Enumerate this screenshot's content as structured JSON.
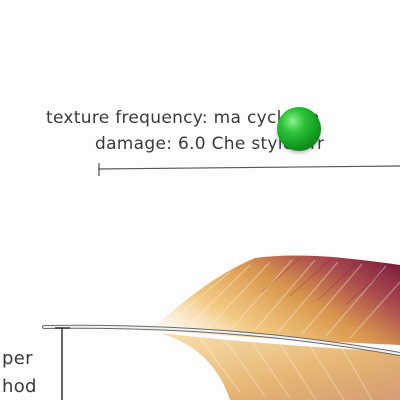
{
  "annotation": {
    "line1": "texture frequency: ma cycloma",
    "line2": "damage: 6.0 Che style err"
  },
  "side_label": {
    "line1": "per",
    "line2": "hod"
  },
  "colors": {
    "ball": "#1aa82a",
    "text": "#3a3a3a",
    "feather_light": "#f0c070",
    "feather_dark": "#8a2040"
  }
}
